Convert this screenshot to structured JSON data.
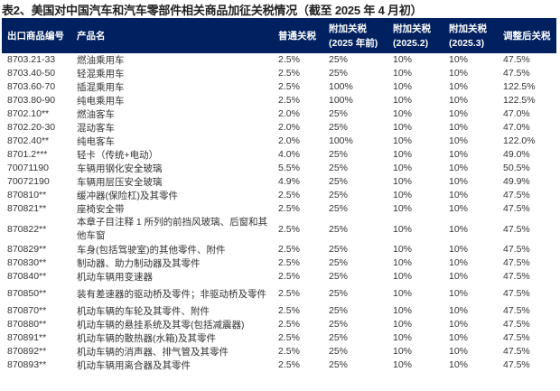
{
  "title": "表2、美国对中国汽车和汽车零部件相关商品加征关税情况（截至 2025 年 4 月初）",
  "table": {
    "header_bg": "#002060",
    "columns": [
      {
        "line1": "出口商品编号",
        "line2": ""
      },
      {
        "line1": "产品名",
        "line2": ""
      },
      {
        "line1": "普通关税",
        "line2": ""
      },
      {
        "line1": "附加关税",
        "line2": "(2025 年前)"
      },
      {
        "line1": "附加关税",
        "line2": "(2025.2)"
      },
      {
        "line1": "附加关税",
        "line2": "(2025.3)"
      },
      {
        "line1": "调整后关税",
        "line2": ""
      }
    ],
    "rows": [
      {
        "code": "8703.21-33",
        "name": "燃油乘用车",
        "base": "2.5%",
        "pre2025": "25%",
        "feb": "10%",
        "mar": "10%",
        "adjusted": "47.5%"
      },
      {
        "code": "8703.40-50",
        "name": "轻混乘用车",
        "base": "2.5%",
        "pre2025": "25%",
        "feb": "10%",
        "mar": "10%",
        "adjusted": "47.5%"
      },
      {
        "code": "8703.60-70",
        "name": "插混乘用车",
        "base": "2.5%",
        "pre2025": "100%",
        "feb": "10%",
        "mar": "10%",
        "adjusted": "122.5%"
      },
      {
        "code": "8703.80-90",
        "name": "纯电乘用车",
        "base": "2.5%",
        "pre2025": "100%",
        "feb": "10%",
        "mar": "10%",
        "adjusted": "122.5%"
      },
      {
        "code": "8702.10**",
        "name": "燃油客车",
        "base": "2.0%",
        "pre2025": "25%",
        "feb": "10%",
        "mar": "10%",
        "adjusted": "47.0%"
      },
      {
        "code": "8702.20-30",
        "name": "混动客车",
        "base": "2.0%",
        "pre2025": "25%",
        "feb": "10%",
        "mar": "10%",
        "adjusted": "47.0%"
      },
      {
        "code": "8702.40**",
        "name": "纯电客车",
        "base": "2.0%",
        "pre2025": "100%",
        "feb": "10%",
        "mar": "10%",
        "adjusted": "122.0%"
      },
      {
        "code": "8701.2***",
        "name": "轻卡（传统+电动）",
        "base": "4.0%",
        "pre2025": "25%",
        "feb": "10%",
        "mar": "10%",
        "adjusted": "49.0%"
      },
      {
        "code": "70071190",
        "name": "车辆用钢化安全玻璃",
        "base": "5.5%",
        "pre2025": "25%",
        "feb": "10%",
        "mar": "10%",
        "adjusted": "50.5%"
      },
      {
        "code": "70072190",
        "name": "车辆用层压安全玻璃",
        "base": "4.9%",
        "pre2025": "25%",
        "feb": "10%",
        "mar": "10%",
        "adjusted": "49.9%"
      },
      {
        "code": "870810**",
        "name": "缓冲器(保险杠)及其零件",
        "base": "2.5%",
        "pre2025": "25%",
        "feb": "10%",
        "mar": "10%",
        "adjusted": "47.5%"
      },
      {
        "code": "870821**",
        "name": "座椅安全带",
        "base": "2.5%",
        "pre2025": "25%",
        "feb": "10%",
        "mar": "10%",
        "adjusted": "47.5%"
      },
      {
        "code": "870822**",
        "name": "本章子目注释 1 所列的前挡风玻璃、后窗和其",
        "name2": "他车窗",
        "base": "2.5%",
        "pre2025": "25%",
        "feb": "10%",
        "mar": "10%",
        "adjusted": "47.5%"
      },
      {
        "code": "870829**",
        "name": "车身(包括驾驶室)的其他零件、附件",
        "base": "2.5%",
        "pre2025": "25%",
        "feb": "10%",
        "mar": "10%",
        "adjusted": "47.5%"
      },
      {
        "code": "870830**",
        "name": "制动器、助力制动器及其零件",
        "base": "2.5%",
        "pre2025": "25%",
        "feb": "10%",
        "mar": "10%",
        "adjusted": "47.5%"
      },
      {
        "code": "870840**",
        "name": "机动车辆用变速器",
        "base": "2.5%",
        "pre2025": "25%",
        "feb": "10%",
        "mar": "10%",
        "adjusted": "47.5%"
      },
      {
        "code": "870850**",
        "name": "装有差速器的驱动桥及零件；非驱动桥及零件",
        "base": "2.5%",
        "pre2025": "25%",
        "feb": "10%",
        "mar": "10%",
        "adjusted": "47.5%"
      },
      {
        "code": "870870**",
        "name": "机动车辆的车轮及其零件、附件",
        "base": "2.5%",
        "pre2025": "25%",
        "feb": "10%",
        "mar": "10%",
        "adjusted": "47.5%"
      },
      {
        "code": "870880**",
        "name": "机动车辆的悬挂系统及其零(包括减震器)",
        "base": "2.5%",
        "pre2025": "25%",
        "feb": "10%",
        "mar": "10%",
        "adjusted": "47.5%"
      },
      {
        "code": "870891**",
        "name": "机动车辆的散热器(水箱)及其零件",
        "base": "2.5%",
        "pre2025": "25%",
        "feb": "10%",
        "mar": "10%",
        "adjusted": "47.5%"
      },
      {
        "code": "870892**",
        "name": "机动车辆的消声器、排气管及其零件",
        "base": "2.5%",
        "pre2025": "25%",
        "feb": "10%",
        "mar": "10%",
        "adjusted": "47.5%"
      },
      {
        "code": "870893**",
        "name": "机动车辆用离合器及其零件",
        "base": "2.5%",
        "pre2025": "25%",
        "feb": "10%",
        "mar": "10%",
        "adjusted": "47.5%"
      }
    ]
  }
}
